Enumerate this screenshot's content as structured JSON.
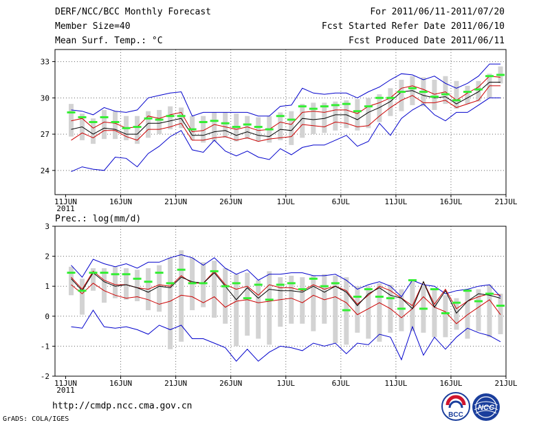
{
  "header": {
    "title": "DERF/NCC/BCC Monthly Forecast",
    "member_size": "Member Size=40",
    "variable_label": "Mean Surf. Temp.: °C",
    "period": "For 2011/06/11-2011/07/20",
    "started": "Fcst Started Refer Date 2011/06/10",
    "produced": "Fcst Produced Date 2011/06/11"
  },
  "footer": {
    "url": "http://cmdp.ncc.cma.gov.cn",
    "grads": "GrADS: COLA/IGES"
  },
  "logos": {
    "left": "BCC",
    "right": "NCC"
  },
  "colors": {
    "box": "#d3d3d3",
    "median": "#000000",
    "mean": "#33ee33",
    "inner": "#cc0000",
    "outer": "#0000cc",
    "grid": "#666666",
    "axis": "#000000"
  },
  "chart_data": [
    {
      "type": "line",
      "title": "Mean Surf. Temp.: °C",
      "xlabel": "",
      "ylabel": "°C",
      "ylim": [
        22,
        34
      ],
      "xlim": [
        0,
        40
      ],
      "yticks": [
        24,
        27,
        30,
        33
      ],
      "xtick_positions": [
        0,
        5,
        10,
        15,
        20,
        25,
        30,
        35,
        40
      ],
      "xtick_labels": [
        "11JUN",
        "16JUN",
        "21JUN",
        "26JUN",
        "1JUL",
        "6JUL",
        "11JUL",
        "16JUL",
        "21JUL"
      ],
      "year_label": "2011",
      "grid": true,
      "series": [
        {
          "name": "box high",
          "values": [
            29.5,
            28.7,
            28.3,
            29.0,
            28.9,
            28.5,
            28.5,
            28.9,
            29.0,
            29.3,
            29.2,
            28.5,
            28.5,
            28.8,
            28.8,
            28.7,
            28.5,
            28.4,
            28.5,
            28.8,
            28.9,
            29.5,
            29.6,
            29.6,
            29.7,
            29.8,
            29.9,
            30.0,
            30.3,
            30.8,
            31.5,
            31.8,
            31.7,
            31.5,
            31.8,
            31.4,
            31.0,
            31.4,
            32.0,
            32.6
          ]
        },
        {
          "name": "box low",
          "values": [
            26.8,
            26.5,
            26.2,
            26.6,
            26.6,
            26.5,
            26.2,
            26.7,
            27.0,
            27.4,
            27.5,
            26.5,
            26.3,
            26.4,
            26.7,
            26.4,
            26.6,
            26.4,
            26.3,
            26.5,
            26.1,
            26.7,
            27.0,
            27.1,
            27.3,
            27.5,
            27.3,
            27.5,
            28.0,
            28.5,
            28.9,
            29.4,
            29.3,
            29.0,
            29.5,
            29.1,
            29.5,
            29.7,
            30.0,
            31.2
          ]
        },
        {
          "name": "outer high",
          "values": [
            29.0,
            28.9,
            28.6,
            29.2,
            28.9,
            28.8,
            29.0,
            30.0,
            30.2,
            30.4,
            30.5,
            28.5,
            28.8,
            28.8,
            28.8,
            28.8,
            28.8,
            28.5,
            28.5,
            29.3,
            29.4,
            30.8,
            30.4,
            30.3,
            30.4,
            30.4,
            30.0,
            30.5,
            30.9,
            31.5,
            32.0,
            31.9,
            31.5,
            31.8,
            31.2,
            30.8,
            31.2,
            31.8,
            32.8,
            32.8
          ]
        },
        {
          "name": "inner high",
          "values": [
            28.1,
            28.3,
            27.5,
            28.0,
            27.9,
            27.5,
            27.6,
            28.5,
            28.3,
            28.6,
            28.8,
            27.2,
            27.3,
            27.8,
            27.6,
            27.4,
            27.6,
            27.3,
            27.4,
            28.0,
            27.8,
            28.8,
            28.9,
            28.8,
            29.0,
            29.0,
            28.7,
            29.3,
            29.6,
            30.0,
            30.8,
            31.0,
            30.7,
            30.3,
            30.5,
            29.8,
            30.4,
            30.9,
            31.8,
            31.7
          ]
        },
        {
          "name": "median",
          "values": [
            27.4,
            27.6,
            27.0,
            27.5,
            27.4,
            27.0,
            27.0,
            27.9,
            27.9,
            28.1,
            28.3,
            26.9,
            26.9,
            27.2,
            27.3,
            26.9,
            27.2,
            26.9,
            26.8,
            27.4,
            27.3,
            28.3,
            28.2,
            28.3,
            28.6,
            28.6,
            28.2,
            28.8,
            29.2,
            29.7,
            30.5,
            30.6,
            30.2,
            30.0,
            30.1,
            29.5,
            30.0,
            30.5,
            31.3,
            31.3
          ]
        },
        {
          "name": "inner low",
          "values": [
            26.5,
            27.1,
            26.7,
            27.3,
            27.3,
            26.8,
            26.5,
            27.4,
            27.4,
            27.6,
            27.9,
            26.5,
            26.5,
            26.7,
            26.8,
            26.5,
            26.7,
            26.4,
            26.6,
            26.7,
            26.8,
            27.8,
            27.7,
            27.6,
            28.0,
            27.9,
            27.6,
            27.7,
            28.5,
            29.2,
            29.8,
            30.2,
            29.6,
            29.6,
            29.8,
            29.2,
            29.5,
            29.8,
            31.0,
            31.0
          ]
        },
        {
          "name": "outer low",
          "values": [
            23.9,
            24.3,
            24.1,
            24.0,
            25.1,
            25.0,
            24.3,
            25.4,
            26.0,
            26.8,
            27.3,
            25.7,
            25.5,
            26.5,
            25.6,
            25.2,
            25.6,
            25.1,
            24.9,
            25.8,
            25.3,
            25.9,
            26.1,
            26.1,
            26.5,
            26.9,
            26.0,
            26.4,
            27.9,
            26.9,
            28.3,
            29.0,
            29.5,
            28.6,
            28.1,
            28.8,
            28.8,
            29.4,
            30.0,
            30.0
          ]
        },
        {
          "name": "ensemble mean",
          "values": [
            28.8,
            28.4,
            28.0,
            28.4,
            28.0,
            27.5,
            27.6,
            28.3,
            28.2,
            28.5,
            28.5,
            27.4,
            28.0,
            28.1,
            27.9,
            27.6,
            27.8,
            27.6,
            27.4,
            28.5,
            28.2,
            29.3,
            29.1,
            29.3,
            29.4,
            29.5,
            28.9,
            29.3,
            30.0,
            30.0,
            30.5,
            30.8,
            30.5,
            30.1,
            30.3,
            29.8,
            30.5,
            30.7,
            31.8,
            31.9
          ]
        }
      ]
    },
    {
      "type": "line",
      "title": "Prec.: log(mm/d)",
      "xlabel": "",
      "ylabel": "log(mm/d)",
      "ylim": [
        -2,
        3
      ],
      "xlim": [
        0,
        40
      ],
      "yticks": [
        -2,
        -1,
        0,
        1,
        2,
        3
      ],
      "xtick_positions": [
        0,
        5,
        10,
        15,
        20,
        25,
        30,
        35,
        40
      ],
      "xtick_labels": [
        "11JUN",
        "16JUN",
        "21JUN",
        "26JUN",
        "1JUL",
        "6JUL",
        "11JUL",
        "16JUL",
        "21JUL"
      ],
      "year_label": "2011",
      "grid": true,
      "series": [
        {
          "name": "box high",
          "values": [
            1.65,
            1.25,
            1.6,
            1.6,
            1.65,
            1.6,
            1.55,
            1.6,
            1.7,
            1.95,
            2.2,
            1.95,
            1.8,
            1.85,
            1.6,
            1.4,
            1.45,
            1.2,
            1.5,
            1.3,
            1.35,
            1.3,
            1.35,
            1.4,
            1.35,
            1.3,
            1.0,
            1.0,
            1.1,
            1.05,
            0.9,
            1.2,
            1.0,
            0.9,
            0.7,
            0.6,
            0.9,
            0.9,
            1.05,
            0.75
          ]
        },
        {
          "name": "box low",
          "values": [
            0.7,
            0.05,
            0.85,
            0.45,
            0.6,
            0.55,
            0.5,
            0.2,
            0.15,
            -1.1,
            -0.85,
            0.2,
            0.3,
            -0.05,
            -0.25,
            -1.0,
            -0.65,
            -0.75,
            -0.95,
            -0.35,
            -0.25,
            -0.25,
            -0.5,
            -0.25,
            -0.9,
            -0.95,
            -0.55,
            -0.75,
            -0.85,
            -0.55,
            -0.5,
            -0.5,
            -0.55,
            -0.7,
            -0.7,
            -0.45,
            -0.75,
            -0.5,
            -0.7,
            -0.6
          ]
        },
        {
          "name": "outer high",
          "values": [
            1.7,
            1.3,
            1.9,
            1.75,
            1.65,
            1.75,
            1.6,
            1.8,
            1.8,
            1.95,
            2.05,
            1.95,
            1.7,
            1.95,
            1.6,
            1.4,
            1.55,
            1.2,
            1.4,
            1.4,
            1.45,
            1.45,
            1.35,
            1.35,
            1.4,
            1.2,
            0.9,
            1.05,
            1.15,
            1.0,
            0.65,
            1.2,
            1.05,
            1.0,
            0.75,
            0.85,
            0.9,
            1.0,
            1.05,
            0.65
          ]
        },
        {
          "name": "inner high",
          "values": [
            1.3,
            0.9,
            1.5,
            1.2,
            1.05,
            1.05,
            0.95,
            0.9,
            1.05,
            1.0,
            1.35,
            1.1,
            1.1,
            1.5,
            1.05,
            0.9,
            1.0,
            0.7,
            1.05,
            0.95,
            0.95,
            0.85,
            1.05,
            0.9,
            1.0,
            0.85,
            0.4,
            0.7,
            1.0,
            0.85,
            0.6,
            0.35,
            1.15,
            0.4,
            0.9,
            0.25,
            0.5,
            0.65,
            0.75,
            0.7
          ]
        },
        {
          "name": "median",
          "values": [
            1.25,
            0.85,
            1.45,
            1.15,
            1.0,
            1.05,
            0.95,
            0.8,
            1.0,
            0.95,
            1.3,
            1.15,
            1.1,
            1.45,
            1.0,
            0.55,
            0.95,
            0.6,
            0.9,
            0.85,
            0.85,
            0.8,
            1.0,
            0.8,
            1.0,
            0.8,
            0.35,
            0.75,
            0.95,
            0.7,
            0.6,
            0.25,
            1.15,
            0.3,
            0.85,
            0.1,
            0.5,
            0.75,
            0.7,
            0.6
          ]
        },
        {
          "name": "inner low",
          "values": [
            1.05,
            0.75,
            1.1,
            0.85,
            0.7,
            0.6,
            0.65,
            0.55,
            0.4,
            0.5,
            0.7,
            0.65,
            0.45,
            0.65,
            0.3,
            0.5,
            0.55,
            0.45,
            0.5,
            0.55,
            0.6,
            0.45,
            0.7,
            0.55,
            0.65,
            0.45,
            0.05,
            0.25,
            0.45,
            0.25,
            -0.05,
            0.25,
            0.65,
            0.3,
            0.15,
            -0.25,
            0.05,
            0.3,
            0.55,
            0.05
          ]
        },
        {
          "name": "outer low",
          "values": [
            -0.35,
            -0.4,
            0.2,
            -0.35,
            -0.4,
            -0.35,
            -0.45,
            -0.6,
            -0.3,
            -0.45,
            -0.3,
            -0.75,
            -0.75,
            -0.9,
            -1.05,
            -1.5,
            -1.1,
            -1.5,
            -1.2,
            -1.0,
            -1.05,
            -1.15,
            -0.9,
            -1.0,
            -0.9,
            -1.25,
            -0.9,
            -0.95,
            -0.6,
            -0.7,
            -1.45,
            -0.35,
            -1.3,
            -0.7,
            -1.1,
            -0.7,
            -0.4,
            -0.55,
            -0.65,
            -0.85
          ]
        },
        {
          "name": "ensemble mean",
          "values": [
            1.45,
            0.85,
            1.45,
            1.45,
            1.4,
            1.4,
            1.25,
            1.15,
            1.45,
            1.1,
            1.55,
            1.1,
            1.1,
            1.5,
            1.0,
            1.1,
            0.6,
            1.05,
            0.55,
            1.05,
            1.1,
            0.9,
            1.25,
            1.0,
            1.1,
            0.2,
            0.65,
            0.9,
            0.65,
            0.6,
            0.25,
            1.2,
            0.25,
            0.9,
            0.1,
            0.45,
            0.85,
            0.5,
            0.75,
            0.35
          ]
        }
      ]
    }
  ]
}
